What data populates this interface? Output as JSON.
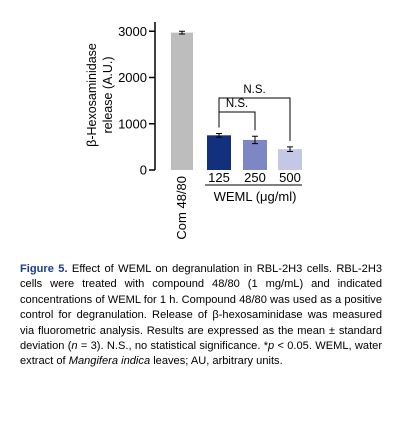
{
  "chart_data": {
    "type": "bar",
    "ylabel": "β-Hexosaminidase release (A.U.)",
    "xlabel": "WEML (μg/ml)",
    "ylim": [
      0,
      3200
    ],
    "yticks": [
      0,
      1000,
      2000,
      3000
    ],
    "ytick_labels": [
      "0",
      "1000",
      "2000",
      "3000"
    ],
    "grid": false,
    "categories": [
      "Com 48/80",
      "125",
      "250",
      "500"
    ],
    "values": [
      2970,
      750,
      650,
      450
    ],
    "errors": [
      30,
      40,
      80,
      50
    ],
    "colors": [
      "#bdbdbd",
      "#12307e",
      "#7d87c4",
      "#c5c7e6"
    ],
    "annotations": [
      {
        "label": "N.S.",
        "from": "125",
        "to": "250"
      },
      {
        "label": "N.S.",
        "from": "125",
        "to": "500"
      }
    ]
  },
  "caption": {
    "label": "Figure 5.",
    "text_before": " Effect of WEML on degranulation in RBL-2H3 cells. RBL-2H3 cells were treated with compound 48/80 (1 mg/mL) and indicated concentrations of WEML for 1 h. Compound 48/80 was used as a positive control for degranulation. Release of β-hexosaminidase was measured via fluorometric analysis. Results are expressed as the mean ± standard deviation (",
    "n_italic": "n",
    "text_middle": " = 3). N.S., no statistical significance. *",
    "p_italic": "p",
    "text_middle2": " < 0.05. WEML, water extract of ",
    "species": "Mangifera indica",
    "text_after": " leaves; AU, arbitrary units."
  }
}
